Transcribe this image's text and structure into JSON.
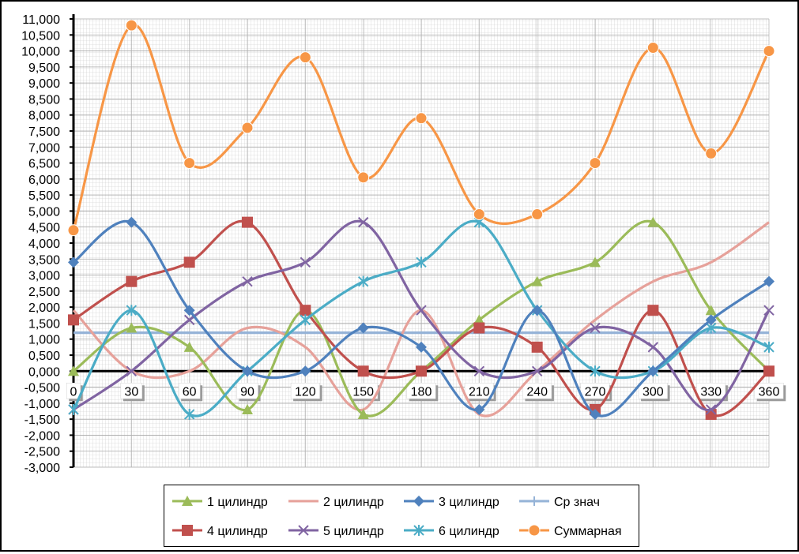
{
  "chart_data": {
    "type": "line",
    "x": [
      0,
      30,
      60,
      90,
      120,
      150,
      180,
      210,
      240,
      270,
      300,
      330,
      360
    ],
    "xtick_labels": [
      "0",
      "30",
      "60",
      "90",
      "120",
      "150",
      "180",
      "210",
      "240",
      "270",
      "300",
      "330",
      "360"
    ],
    "ylim": [
      -3,
      11
    ],
    "ytick_labels": [
      "11,000",
      "10,500",
      "10,000",
      "9,500",
      "9,000",
      "8,500",
      "8,000",
      "7,500",
      "7,000",
      "6,500",
      "6,000",
      "5,500",
      "5,000",
      "4,500",
      "4,000",
      "3,500",
      "3,000",
      "2,500",
      "2,000",
      "1,500",
      "1,000",
      "0,500",
      "0,000",
      "-0,500",
      "-1,000",
      "-1,500",
      "-2,000",
      "-2,500",
      "-3,000"
    ],
    "grid": true,
    "legend_position": "bottom",
    "series": [
      {
        "name": "1 цилиндр",
        "color": "#9BBB59",
        "marker": "triangle",
        "values": [
          0.0,
          1.35,
          0.75,
          -1.2,
          1.9,
          -1.35,
          0.0,
          1.6,
          2.8,
          3.4,
          4.65,
          1.9,
          0.0
        ]
      },
      {
        "name": "2 цилиндр",
        "color": "#E6A19A",
        "marker": "none",
        "values": [
          1.9,
          0.0,
          0.0,
          1.35,
          0.75,
          -1.2,
          1.9,
          -1.35,
          0.0,
          1.6,
          2.8,
          3.4,
          4.65
        ]
      },
      {
        "name": "3 цилиндр",
        "color": "#4F81BD",
        "marker": "diamond",
        "values": [
          3.4,
          4.65,
          1.9,
          0.0,
          0.0,
          1.35,
          0.75,
          -1.2,
          1.9,
          -1.35,
          0.0,
          1.6,
          2.8
        ]
      },
      {
        "name": "Ср знач",
        "color": "#95B3D7",
        "marker": "plus",
        "values": [
          1.2,
          1.2,
          1.2,
          1.2,
          1.2,
          1.2,
          1.2,
          1.2,
          1.2,
          1.2,
          1.2,
          1.2,
          1.2
        ]
      },
      {
        "name": "4 цилиндр",
        "color": "#C0504D",
        "marker": "square",
        "values": [
          1.6,
          2.8,
          3.4,
          4.65,
          1.9,
          0.0,
          0.0,
          1.35,
          0.75,
          -1.2,
          1.9,
          -1.35,
          0.0
        ]
      },
      {
        "name": "5 цилиндр",
        "color": "#8064A2",
        "marker": "x",
        "values": [
          -1.2,
          0.0,
          1.6,
          2.8,
          3.4,
          4.65,
          1.9,
          0.0,
          0.0,
          1.35,
          0.75,
          -1.2,
          1.9
        ]
      },
      {
        "name": "6 цилиндр",
        "color": "#4BACC6",
        "marker": "star",
        "values": [
          -1.2,
          1.9,
          -1.35,
          0.0,
          1.6,
          2.8,
          3.4,
          4.65,
          1.9,
          0.0,
          0.0,
          1.35,
          0.75
        ]
      },
      {
        "name": "Суммарная",
        "color": "#F79646",
        "marker": "circle",
        "values": [
          4.4,
          10.8,
          6.5,
          7.6,
          9.8,
          6.05,
          7.9,
          4.9,
          4.9,
          6.5,
          10.1,
          6.8,
          10.0
        ]
      }
    ]
  }
}
